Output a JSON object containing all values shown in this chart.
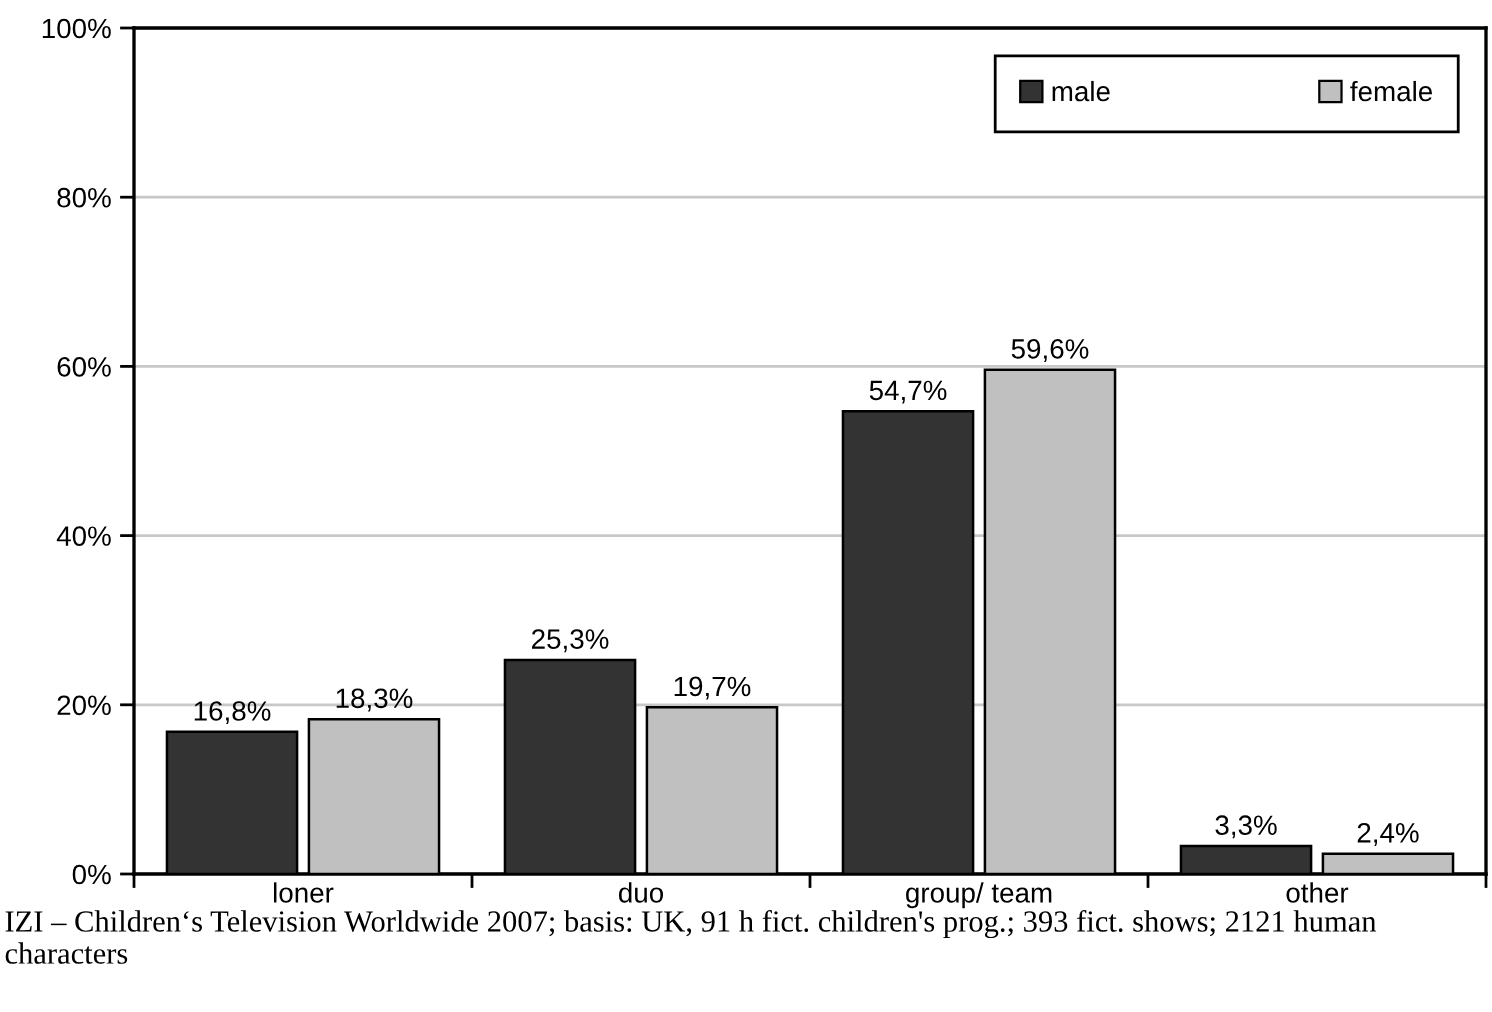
{
  "chart_data": {
    "type": "bar",
    "categories": [
      "loner",
      "duo",
      "group/ team",
      "other"
    ],
    "series": [
      {
        "name": "male",
        "color": "#333333",
        "values": [
          16.8,
          25.3,
          54.7,
          3.3
        ],
        "value_labels": [
          "16,8%",
          "25,3%",
          "54,7%",
          "3,3%"
        ]
      },
      {
        "name": "female",
        "color": "#c0c0c0",
        "values": [
          18.3,
          19.7,
          59.6,
          2.4
        ],
        "value_labels": [
          "18,3%",
          "19,7%",
          "59,6%",
          "2,4%"
        ]
      }
    ],
    "ylim": [
      0,
      100
    ],
    "yticks": [
      {
        "value": 0,
        "label": "0%"
      },
      {
        "value": 20,
        "label": "20%"
      },
      {
        "value": 40,
        "label": "40%"
      },
      {
        "value": 60,
        "label": "60%"
      },
      {
        "value": 80,
        "label": "80%"
      },
      {
        "value": 100,
        "label": "100%"
      }
    ],
    "grid": "y",
    "legend": "top right",
    "annotations": [
      "IZI – Children‘s Television Worldwide 2007; basis: UK, 91 h fict. children's prog.; 393 fict. shows; 2121 human characters"
    ]
  }
}
